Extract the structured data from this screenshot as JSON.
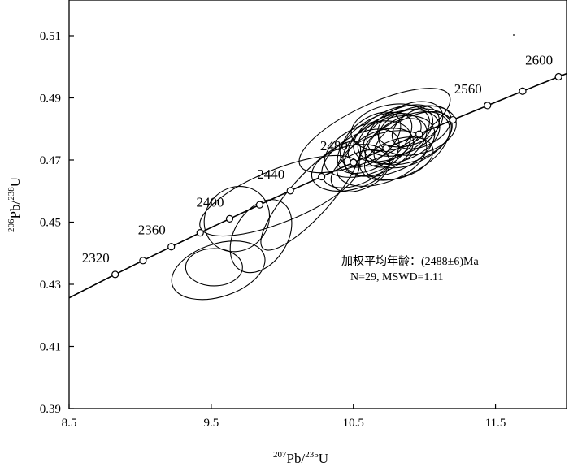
{
  "chart_data": {
    "type": "scatter",
    "subtype": "concordia-diagram",
    "xlabel": {
      "sup1": "207",
      "main1": "Pb/",
      "sup2": "235",
      "main2": "U"
    },
    "ylabel": {
      "sup1": "206",
      "main1": "Pb/",
      "sup2": "238",
      "main2": "U"
    },
    "xlim": [
      8.5,
      12.0
    ],
    "ylim": [
      0.39,
      0.5215
    ],
    "xticks": [
      8.5,
      9.5,
      10.5,
      11.5
    ],
    "xtick_labels": [
      "8.5",
      "9.5",
      "10.5",
      "11.5"
    ],
    "yticks": [
      0.39,
      0.41,
      0.43,
      0.45,
      0.47,
      0.49,
      0.51
    ],
    "ytick_labels": [
      "0.39",
      "0.41",
      "0.43",
      "0.45",
      "0.47",
      "0.49",
      "0.51"
    ],
    "concordia": {
      "ages_ma": [
        2320,
        2340,
        2360,
        2380,
        2400,
        2420,
        2440,
        2460,
        2480,
        2500,
        2520,
        2540,
        2560,
        2580,
        2600
      ],
      "labels": [
        {
          "age": 2320,
          "text": "2320"
        },
        {
          "age": 2360,
          "text": "2360"
        },
        {
          "age": 2400,
          "text": "2400"
        },
        {
          "age": 2440,
          "text": "2440"
        },
        {
          "age": 2480,
          "text": "2480"
        },
        {
          "age": 2560,
          "text": "2560"
        },
        {
          "age": 2600,
          "text": "2600"
        }
      ]
    },
    "ellipses": [
      {
        "cx": 9.55,
        "cy": 0.4345,
        "rx": 0.34,
        "ry": 0.0085,
        "angle": 18
      },
      {
        "cx": 9.52,
        "cy": 0.4355,
        "rx": 0.2,
        "ry": 0.006,
        "angle": 0
      },
      {
        "cx": 9.68,
        "cy": 0.451,
        "rx": 0.24,
        "ry": 0.01,
        "angle": 45
      },
      {
        "cx": 9.85,
        "cy": 0.4455,
        "rx": 0.28,
        "ry": 0.0085,
        "angle": 58
      },
      {
        "cx": 9.98,
        "cy": 0.4585,
        "rx": 0.6,
        "ry": 0.0085,
        "angle": 22
      },
      {
        "cx": 10.2,
        "cy": 0.4585,
        "rx": 0.5,
        "ry": 0.0065,
        "angle": 48
      },
      {
        "cx": 10.65,
        "cy": 0.4795,
        "rx": 0.58,
        "ry": 0.0085,
        "angle": 25
      },
      {
        "cx": 10.48,
        "cy": 0.4675,
        "rx": 0.28,
        "ry": 0.007,
        "angle": 15
      },
      {
        "cx": 10.55,
        "cy": 0.4705,
        "rx": 0.3,
        "ry": 0.0075,
        "angle": 30
      },
      {
        "cx": 10.6,
        "cy": 0.4735,
        "rx": 0.32,
        "ry": 0.0078,
        "angle": 22
      },
      {
        "cx": 10.65,
        "cy": 0.4755,
        "rx": 0.3,
        "ry": 0.0072,
        "angle": 35
      },
      {
        "cx": 10.68,
        "cy": 0.4725,
        "rx": 0.26,
        "ry": 0.0065,
        "angle": 25
      },
      {
        "cx": 10.72,
        "cy": 0.4765,
        "rx": 0.28,
        "ry": 0.0068,
        "angle": 28
      },
      {
        "cx": 10.75,
        "cy": 0.4745,
        "rx": 0.34,
        "ry": 0.0085,
        "angle": 22
      },
      {
        "cx": 10.78,
        "cy": 0.4785,
        "rx": 0.3,
        "ry": 0.0075,
        "angle": 26
      },
      {
        "cx": 10.8,
        "cy": 0.4755,
        "rx": 0.24,
        "ry": 0.0062,
        "angle": 32
      },
      {
        "cx": 10.82,
        "cy": 0.4775,
        "rx": 0.3,
        "ry": 0.0078,
        "angle": 20
      },
      {
        "cx": 10.85,
        "cy": 0.4795,
        "rx": 0.27,
        "ry": 0.0072,
        "angle": 24
      },
      {
        "cx": 10.88,
        "cy": 0.4775,
        "rx": 0.32,
        "ry": 0.0082,
        "angle": 18
      },
      {
        "cx": 10.9,
        "cy": 0.4815,
        "rx": 0.24,
        "ry": 0.0065,
        "angle": 22
      },
      {
        "cx": 10.92,
        "cy": 0.4765,
        "rx": 0.3,
        "ry": 0.0072,
        "angle": 28
      },
      {
        "cx": 10.95,
        "cy": 0.4795,
        "rx": 0.28,
        "ry": 0.0075,
        "angle": 15
      },
      {
        "cx": 10.7,
        "cy": 0.4705,
        "rx": 0.33,
        "ry": 0.0078,
        "angle": 20
      },
      {
        "cx": 10.62,
        "cy": 0.4765,
        "rx": 0.25,
        "ry": 0.0065,
        "angle": 40
      },
      {
        "cx": 10.86,
        "cy": 0.4745,
        "rx": 0.35,
        "ry": 0.0088,
        "angle": 30
      },
      {
        "cx": 10.76,
        "cy": 0.4805,
        "rx": 0.28,
        "ry": 0.0072,
        "angle": 12
      },
      {
        "cx": 10.55,
        "cy": 0.4665,
        "rx": 0.22,
        "ry": 0.0058,
        "angle": 25
      },
      {
        "cx": 10.82,
        "cy": 0.4705,
        "rx": 0.25,
        "ry": 0.0062,
        "angle": 18
      },
      {
        "cx": 10.98,
        "cy": 0.4805,
        "rx": 0.22,
        "ry": 0.006,
        "angle": 25
      }
    ],
    "annotation": {
      "line1": "加权平均年龄：(2488±6)Ma",
      "line2": "N=29, MSWD=1.11"
    }
  }
}
